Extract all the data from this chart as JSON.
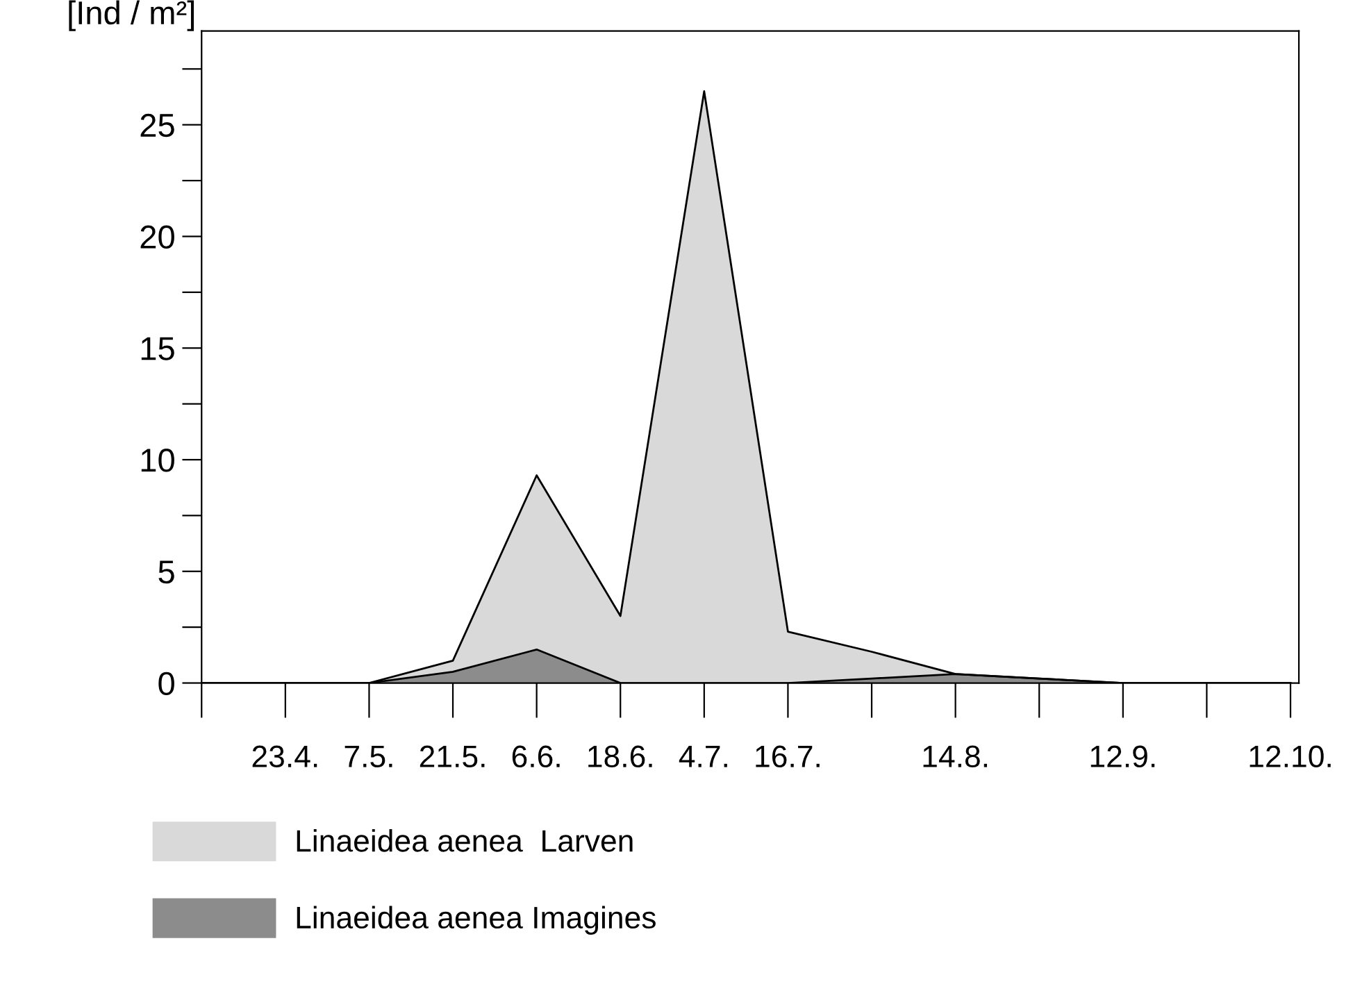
{
  "chart_data": {
    "type": "area",
    "ylabel": "[Ind / m²]",
    "categories": [
      null,
      "23.4.",
      "7.5.",
      "21.5.",
      "6.6.",
      "18.6.",
      "4.7.",
      "16.7.",
      null,
      "14.8.",
      null,
      "12.9.",
      null,
      "12.10."
    ],
    "series": [
      {
        "name": "Linaeidea aenea  Larven",
        "color": "#d9d9d9",
        "values": [
          0,
          0,
          0,
          1,
          9.3,
          3,
          26.5,
          2.3,
          1.4,
          0.4,
          0.2,
          0,
          0,
          0
        ]
      },
      {
        "name": "Linaeidea aenea Imagines",
        "color": "#8c8c8c",
        "values": [
          0,
          0,
          0,
          0.5,
          1.5,
          0,
          0,
          0,
          0.2,
          0.4,
          0.2,
          0,
          0,
          0
        ]
      }
    ],
    "ylim": [
      0,
      29.2
    ],
    "yticks": [
      0,
      {
        "value": 2.5,
        "label": null
      },
      5,
      {
        "value": 7.5,
        "label": null
      },
      10,
      {
        "value": 12.5,
        "label": null
      },
      15,
      {
        "value": 17.5,
        "label": null
      },
      20,
      {
        "value": 22.5,
        "label": null
      },
      25,
      {
        "value": 27.5,
        "label": null
      }
    ],
    "grid": false,
    "legend": "bottom"
  }
}
